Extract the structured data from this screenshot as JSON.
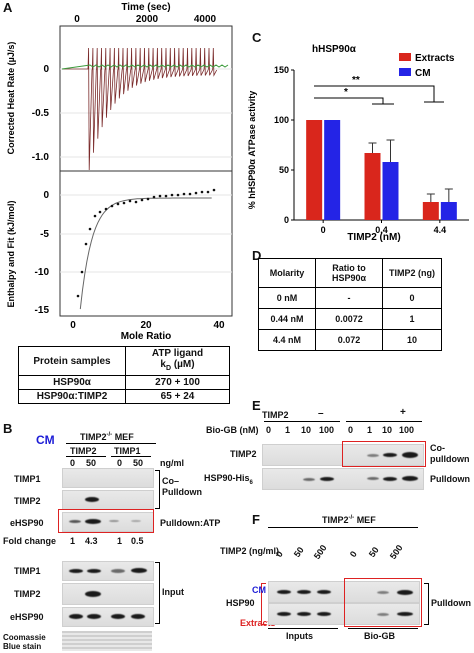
{
  "panels": {
    "a": "A",
    "b": "B",
    "c": "C",
    "d": "D",
    "e": "E",
    "f": "F"
  },
  "panel_a": {
    "top_axis_title": "Time (sec)",
    "top_ticks": [
      "0",
      "2000",
      "4000"
    ],
    "upper_ylabel": "Corrected Heat Rate (µJ/s)",
    "upper_yticks": [
      "0",
      "-0.5",
      "-1.0"
    ],
    "lower_ylabel": "Enthalpy and Fit (kJ/mol)",
    "lower_yticks": [
      "0",
      "-5",
      "-10",
      "-15"
    ],
    "bottom_ticks": [
      "0",
      "20",
      "40"
    ],
    "xlabel": "Mole Ratio",
    "table": {
      "header_col1": "Protein samples",
      "header_col2": "ATP ligand",
      "header_col2_sub": "k",
      "header_col2_subscript": "D",
      "header_col2_unit": "(µM)",
      "rows": [
        {
          "sample": "HSP90α",
          "kd": "270 + 100"
        },
        {
          "sample": "HSP90α:TIMP2",
          "kd": "65 + 24"
        }
      ]
    }
  },
  "chart_data": {
    "type": "bar",
    "title": "hHSP90α",
    "ylabel": "% hHSP90α ATPase activity",
    "xlabel": "TIMP2 (nM)",
    "categories": [
      "0",
      "0.4",
      "4.4"
    ],
    "ylim": [
      0,
      150
    ],
    "yticks": [
      "0",
      "50",
      "100",
      "150"
    ],
    "series": [
      {
        "name": "Extracts",
        "color": "#d9261c",
        "values": [
          100,
          67,
          18
        ],
        "errors": [
          0,
          10,
          8
        ]
      },
      {
        "name": "CM",
        "color": "#2424e6",
        "values": [
          100,
          58,
          18
        ],
        "errors": [
          0,
          22,
          13
        ]
      }
    ],
    "annotations": [
      "**",
      "*"
    ],
    "legend_position": "top-right"
  },
  "panel_d": {
    "headers": [
      "Molarity",
      "Ratio to HSP90α",
      "TIMP2 (ng)"
    ],
    "rows": [
      [
        "0 nM",
        "-",
        "0"
      ],
      [
        "0.44 nM",
        "0.0072",
        "1"
      ],
      [
        "4.4 nM",
        "0.072",
        "10"
      ]
    ]
  },
  "panel_b": {
    "cm": "CM",
    "mef": "TIMP2",
    "mef_sup": "-/-",
    "mef_suffix": " MEF",
    "group1": "TIMP2",
    "group2": "TIMP1",
    "concs": [
      "0",
      "50",
      "0",
      "50"
    ],
    "unit": "ng/ml",
    "rows": [
      "TIMP1",
      "TIMP2",
      "eHSP90"
    ],
    "bracket1": "Co–\nPulldown",
    "pulldown_atp": "Pulldown:ATP",
    "fold_label": "Fold change",
    "folds": [
      "1",
      "4.3",
      "1",
      "0.5"
    ],
    "input_rows": [
      "TIMP1",
      "TIMP2",
      "eHSP90"
    ],
    "input_label": "Input",
    "coomassie": "Coomassie\nBlue stain"
  },
  "panel_e": {
    "timp2": "TIMP2",
    "minus": "–",
    "plus": "+",
    "biogb": "Bio-GB (nM)",
    "concs": [
      "0",
      "1",
      "10",
      "100",
      "0",
      "1",
      "10",
      "100"
    ],
    "row1": "TIMP2",
    "row2": "HSP90-His",
    "row2_sub": "6",
    "co_pulldown": "Co-\npulldown",
    "pulldown": "Pulldown"
  },
  "panel_f": {
    "mef": "TIMP2",
    "mef_sup": "-/-",
    "mef_suffix": " MEF",
    "timp2": "TIMP2 (ng/ml)",
    "concs": [
      "0",
      "50",
      "500",
      "0",
      "50",
      "500"
    ],
    "hsp90": "HSP90",
    "cm": "CM",
    "extracts": "Extracts",
    "pulldown": "Pulldown",
    "inputs": "Inputs",
    "biogb": "Bio-GB"
  }
}
